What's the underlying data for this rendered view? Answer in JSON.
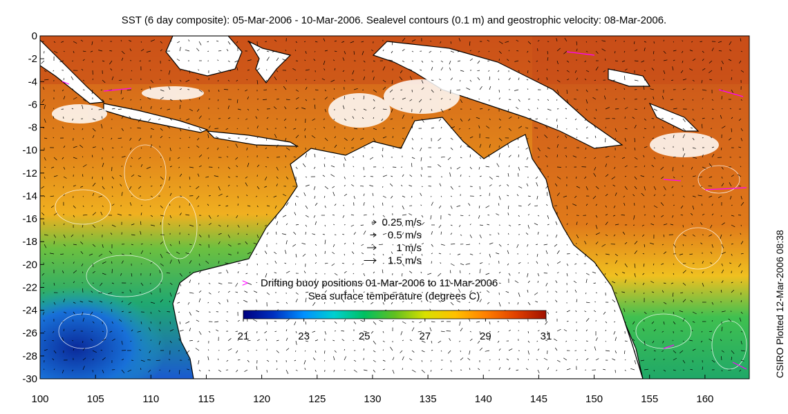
{
  "title": "SST (6 day composite): 05-Mar-2006 - 10-Mar-2006. Sealevel contours (0.1 m) and geostrophic velocity: 08-Mar-2006.",
  "side_label": "CSIRO Plotted 12-Mar-2006 08:38",
  "axes": {
    "x_ticks": [
      "100",
      "105",
      "110",
      "115",
      "120",
      "125",
      "130",
      "135",
      "140",
      "145",
      "150",
      "155",
      "160"
    ],
    "y_ticks": [
      "0",
      "-2",
      "-4",
      "-6",
      "-8",
      "-10",
      "-12",
      "-14",
      "-16",
      "-18",
      "-20",
      "-22",
      "-24",
      "-26",
      "-28",
      "-30"
    ],
    "lon_range": [
      100,
      164
    ],
    "lat_range": [
      -30,
      0
    ]
  },
  "velocity_legend": {
    "items": [
      {
        "label": "0.25 m/s",
        "speed": 0.25
      },
      {
        "label": "0.5 m/s",
        "speed": 0.5
      },
      {
        "label": "1 m/s",
        "speed": 1
      },
      {
        "label": "1.5 m/s",
        "speed": 1.5
      }
    ]
  },
  "buoy_legend": {
    "marker": ">",
    "label": "Drifting buoy positions 01-Mar-2006 to 11-Mar-2006",
    "color": "#ff00ff"
  },
  "colorbar": {
    "title": "Sea surface temperature (degrees C)",
    "range": [
      21,
      31
    ],
    "tick_labels": [
      "21",
      "23",
      "25",
      "27",
      "29",
      "31"
    ],
    "colors": [
      "#00007f",
      "#0030c0",
      "#0090ff",
      "#00d0d0",
      "#00c060",
      "#60c020",
      "#d8e000",
      "#ffc000",
      "#ff8000",
      "#e04000",
      "#a01000"
    ]
  },
  "colors": {
    "land": "#ffffff",
    "coast": "#000000",
    "warm_sea": "#d8681c",
    "mid_sea": "#f0a010",
    "cool_sea": "#2ab040",
    "cold_sea": "#1030b0"
  }
}
